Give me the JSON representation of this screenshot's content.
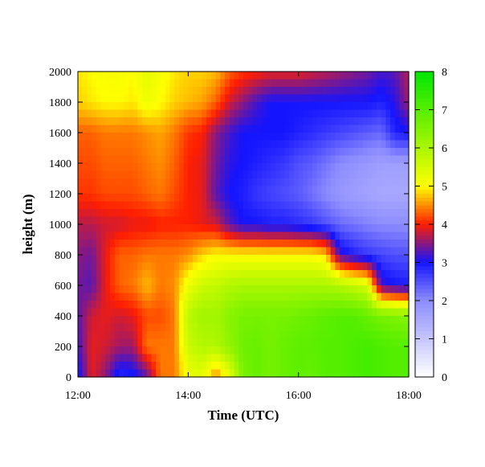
{
  "chart_data": {
    "type": "heatmap",
    "title": "",
    "xlabel": "Time (UTC)",
    "ylabel": "height (m)",
    "x_ticks": [
      "12:00",
      "14:00",
      "16:00",
      "18:00"
    ],
    "x_tick_hours": [
      12,
      14,
      16,
      18
    ],
    "xlim_hours": [
      12,
      18
    ],
    "y_ticks": [
      0,
      200,
      400,
      600,
      800,
      1000,
      1200,
      1400,
      1600,
      1800,
      2000
    ],
    "ylim": [
      0,
      2000
    ],
    "colorbar": {
      "ticks": [
        0,
        1,
        2,
        3,
        4,
        5,
        6,
        7,
        8
      ],
      "range": [
        0,
        8
      ],
      "colors": [
        {
          "value": 0,
          "color": "#ffffff"
        },
        {
          "value": 2,
          "color": "#8c8cff"
        },
        {
          "value": 3,
          "color": "#1414ff"
        },
        {
          "value": 4,
          "color": "#ff1e00"
        },
        {
          "value": 5,
          "color": "#ffff00"
        },
        {
          "value": 8,
          "color": "#00e600"
        }
      ]
    },
    "time_hours": [
      12.0,
      12.25,
      12.5,
      12.75,
      13.0,
      13.25,
      13.5,
      13.75,
      14.0,
      14.25,
      14.5,
      14.75,
      15.0,
      15.25,
      15.5,
      15.75,
      16.0,
      16.25,
      16.5,
      16.75,
      17.0,
      17.25,
      17.5,
      17.75,
      18.0
    ],
    "mixed_layer_top_m": [
      880,
      860,
      620,
      620,
      700,
      720,
      760,
      760,
      780,
      800,
      920,
      930,
      930,
      930,
      930,
      930,
      930,
      920,
      870,
      780,
      700,
      640,
      600,
      560,
      550
    ],
    "value_grid": {
      "heights_m": [
        0,
        200,
        400,
        600,
        800,
        1000,
        1200,
        1400,
        1600,
        1800,
        2000
      ],
      "values": [
        [
          2.9,
          3.9,
          3.5,
          2.8,
          2.9,
          3.3,
          4.4,
          4.4,
          5.2,
          5.3,
          4.4,
          5.2,
          6.6,
          6.8,
          6.6,
          6.8,
          6.9,
          6.8,
          7.0,
          7.0,
          7.1,
          7.2,
          7.1,
          7.0,
          7.0
        ],
        [
          3.2,
          3.9,
          3.8,
          3.6,
          3.6,
          4.4,
          4.4,
          4.4,
          5.6,
          5.9,
          5.9,
          6.3,
          6.7,
          6.8,
          6.6,
          6.8,
          6.9,
          6.9,
          7.0,
          7.0,
          7.1,
          7.2,
          7.1,
          7.0,
          7.0
        ],
        [
          3.3,
          3.8,
          3.9,
          3.8,
          3.9,
          4.2,
          4.2,
          4.4,
          5.8,
          6.1,
          6.1,
          6.4,
          6.6,
          6.6,
          6.6,
          6.6,
          6.7,
          6.8,
          6.9,
          7.0,
          7.0,
          6.8,
          6.6,
          6.5,
          6.4
        ],
        [
          3.4,
          3.3,
          3.9,
          4.3,
          4.4,
          4.7,
          4.4,
          4.5,
          5.2,
          5.6,
          5.7,
          5.9,
          6.0,
          6.0,
          6.0,
          6.0,
          6.0,
          6.0,
          6.0,
          5.9,
          5.7,
          5.5,
          3.2,
          3.0,
          2.9
        ],
        [
          3.5,
          3.4,
          3.9,
          4.3,
          4.3,
          4.4,
          4.4,
          4.4,
          4.5,
          4.8,
          5.0,
          5.0,
          5.0,
          5.0,
          5.0,
          5.0,
          5.0,
          5.0,
          4.8,
          3.2,
          2.9,
          2.7,
          2.6,
          2.5,
          2.5
        ],
        [
          3.7,
          3.7,
          3.8,
          3.8,
          3.9,
          3.9,
          4.0,
          4.0,
          4.0,
          3.9,
          3.8,
          3.3,
          3.0,
          3.0,
          2.9,
          2.9,
          2.8,
          2.7,
          2.5,
          2.3,
          2.2,
          2.1,
          2.0,
          2.0,
          2.0
        ],
        [
          4.1,
          4.1,
          4.2,
          4.2,
          4.2,
          4.3,
          4.4,
          4.2,
          4.0,
          3.9,
          3.3,
          3.0,
          2.9,
          2.7,
          2.6,
          2.5,
          2.4,
          2.2,
          2.0,
          1.8,
          1.7,
          1.6,
          1.5,
          1.5,
          1.5
        ],
        [
          4.2,
          4.2,
          4.3,
          4.3,
          4.3,
          4.4,
          4.5,
          4.3,
          4.0,
          3.9,
          3.4,
          3.1,
          3.0,
          2.9,
          2.8,
          2.7,
          2.5,
          2.4,
          2.2,
          2.0,
          1.9,
          1.8,
          1.7,
          1.7,
          1.7
        ],
        [
          4.3,
          4.3,
          4.4,
          4.4,
          4.4,
          4.5,
          4.6,
          4.4,
          4.1,
          4.0,
          3.5,
          3.2,
          3.0,
          3.0,
          3.0,
          3.0,
          2.9,
          2.8,
          2.7,
          2.6,
          2.5,
          2.4,
          2.3,
          2.9,
          3.0
        ],
        [
          4.8,
          4.9,
          5.0,
          5.0,
          4.9,
          5.2,
          5.0,
          4.8,
          4.7,
          4.6,
          4.3,
          3.8,
          3.5,
          3.2,
          3.0,
          3.0,
          3.0,
          3.0,
          3.0,
          3.0,
          3.0,
          3.0,
          2.9,
          3.1,
          3.6
        ],
        [
          4.9,
          5.0,
          5.1,
          5.1,
          5.0,
          5.3,
          5.1,
          4.9,
          4.8,
          4.8,
          4.7,
          4.3,
          4.1,
          4.0,
          3.9,
          3.9,
          3.9,
          3.8,
          3.7,
          3.6,
          3.5,
          3.4,
          3.2,
          3.3,
          3.7
        ]
      ]
    }
  }
}
